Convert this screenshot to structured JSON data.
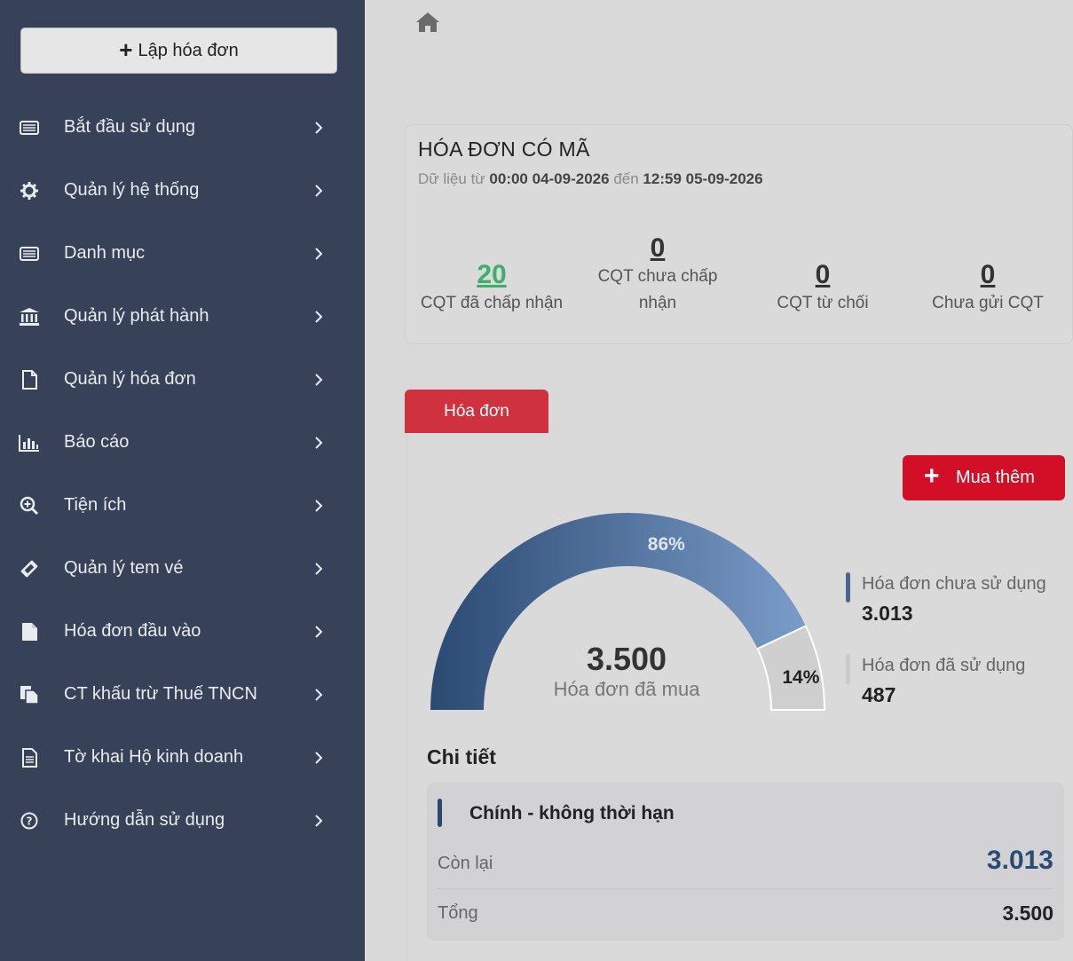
{
  "sidebar": {
    "create_button": "Lập hóa đơn",
    "items": [
      {
        "label": "Bắt đầu sử dụng",
        "icon": "list-icon"
      },
      {
        "label": "Quản lý hệ thống",
        "icon": "gear-icon"
      },
      {
        "label": "Danh mục",
        "icon": "list-icon"
      },
      {
        "label": "Quản lý phát hành",
        "icon": "bank-icon"
      },
      {
        "label": "Quản lý hóa đơn",
        "icon": "file-icon"
      },
      {
        "label": "Báo cáo",
        "icon": "bar-chart-icon"
      },
      {
        "label": "Tiện ích",
        "icon": "zoom-in-icon"
      },
      {
        "label": "Quản lý tem vé",
        "icon": "ticket-icon"
      },
      {
        "label": "Hóa đơn đầu vào",
        "icon": "file-solid-icon"
      },
      {
        "label": "CT khấu trừ Thuế TNCN",
        "icon": "copy-icon"
      },
      {
        "label": "Tờ khai Hộ kinh doanh",
        "icon": "document-icon"
      },
      {
        "label": "Hướng dẫn sử dụng",
        "icon": "help-icon"
      }
    ]
  },
  "stats": {
    "title": "HÓA ĐƠN CÓ MÃ",
    "subtitle_prefix": "Dữ liệu từ",
    "from": "00:00 04-09-2026",
    "subtitle_mid": "đến",
    "to": "12:59 05-09-2026",
    "items": [
      {
        "value": "20",
        "label": "CQT đã chấp nhận"
      },
      {
        "value": "0",
        "label_line1": "CQT chưa chấp",
        "label_line2": "nhận"
      },
      {
        "value": "0",
        "label": "CQT từ chối"
      },
      {
        "value": "0",
        "label": "Chưa gửi CQT"
      }
    ]
  },
  "tab": {
    "label": "Hóa đơn"
  },
  "buy_button": "Mua thêm",
  "gauge": {
    "total": "3.500",
    "caption": "Hóa đơn đã mua",
    "unused_percent_label": "86%",
    "used_percent_label": "14%",
    "unused_fraction": 0.86,
    "colors": {
      "unused_start": "#2b4a72",
      "unused_end": "#7a9cc8",
      "used": "#cfcfcf"
    }
  },
  "legend": [
    {
      "label": "Hóa đơn chưa sử dụng",
      "value": "3.013",
      "color": "#4a6590"
    },
    {
      "label": "Hóa đơn đã sử dụng",
      "value": "487",
      "color": "#cacaca"
    }
  ],
  "detail": {
    "title": "Chi tiết",
    "card_title": "Chính - không thời hạn",
    "remaining_label": "Còn lại",
    "remaining_value": "3.013",
    "total_label": "Tổng",
    "total_value": "3.500"
  }
}
